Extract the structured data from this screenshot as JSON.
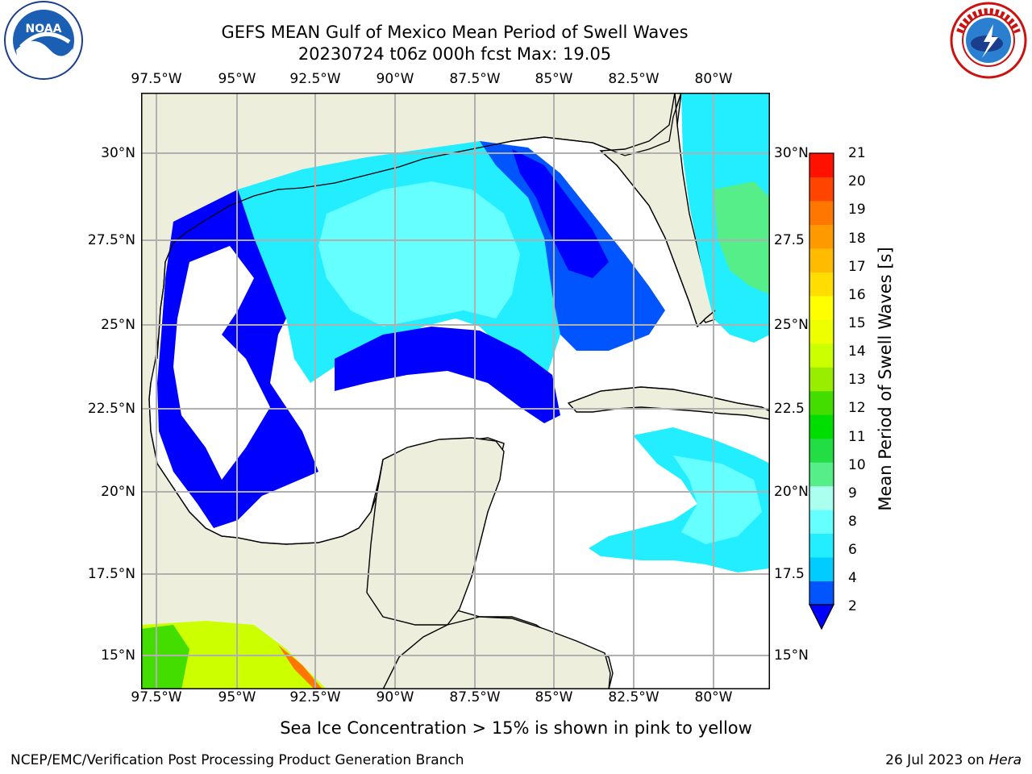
{
  "header": {
    "title_line1": "GEFS MEAN Gulf of Mexico Mean Period of Swell Waves",
    "title_line2": "20230724 t06z 000h fcst   Max: 19.05"
  },
  "logos": {
    "left": "noaa-logo",
    "right": "nws-logo"
  },
  "map": {
    "lon_labels": [
      "97.5°W",
      "95°W",
      "92.5°W",
      "90°W",
      "87.5°W",
      "85°W",
      "82.5°W",
      "80°W"
    ],
    "lat_labels_left": [
      "30°N",
      "27.5°N",
      "25°N",
      "22.5°N",
      "20°N",
      "17.5°N",
      "15°N"
    ],
    "lat_labels_right": [
      "30°N",
      "27.5",
      "25°N",
      "22.5",
      "20°N",
      "17.5",
      "15°N"
    ],
    "land_color": "#eeeedd",
    "water_color": "#ffffff",
    "grid_color": "#b0b0b0"
  },
  "colorbar": {
    "title": "Mean Period of Swell Waves [s]",
    "ticks": [
      "21",
      "20",
      "19",
      "18",
      "17",
      "16",
      "15",
      "14",
      "13",
      "12",
      "11",
      "10",
      "9",
      "8",
      "6",
      "4",
      "2"
    ],
    "colors_bottom_to_top": [
      "#0055ff",
      "#00ccff",
      "#22eeff",
      "#66ffff",
      "#aaffee",
      "#55ee88",
      "#22dd44",
      "#00dd00",
      "#44dd00",
      "#99ee00",
      "#ccff00",
      "#eeff00",
      "#ffff00",
      "#ffdd00",
      "#ffbb00",
      "#ff9900",
      "#ff7700",
      "#ff4400",
      "#ff1100"
    ],
    "extend_color": "#0000ff"
  },
  "note": "Sea Ice Concentration > 15% is shown in pink to yellow",
  "footer": {
    "left": "NCEP/EMC/Verification Post Processing Product Generation Branch",
    "right_prefix": "26 Jul 2023 on ",
    "right_host": "Hera"
  }
}
